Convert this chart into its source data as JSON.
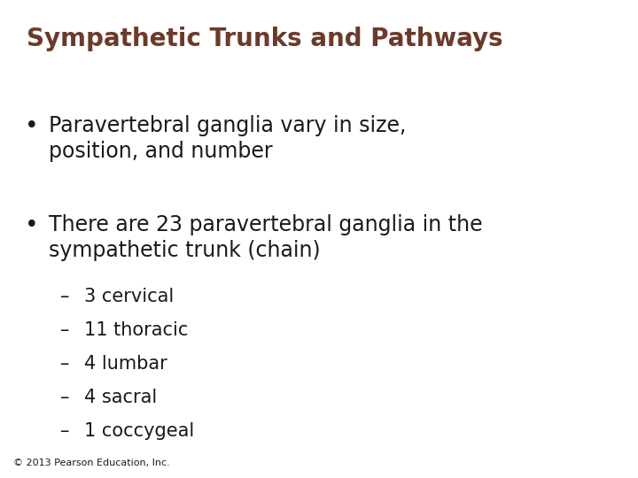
{
  "title": "Sympathetic Trunks and Pathways",
  "title_fontsize": 20,
  "title_color": "#6b3a2a",
  "background_color": "#ffffff",
  "bullet_points": [
    "Paravertebral ganglia vary in size,\nposition, and number",
    "There are 23 paravertebral ganglia in the\nsympathetic trunk (chain)"
  ],
  "bullet_fontsize": 17,
  "sub_items": [
    "3 cervical",
    "11 thoracic",
    "4 lumbar",
    "4 sacral",
    "1 coccygeal"
  ],
  "sub_fontsize": 15,
  "footer": "© 2013 Pearson Education, Inc.",
  "footer_fontsize": 8,
  "text_color": "#1a1a1a"
}
